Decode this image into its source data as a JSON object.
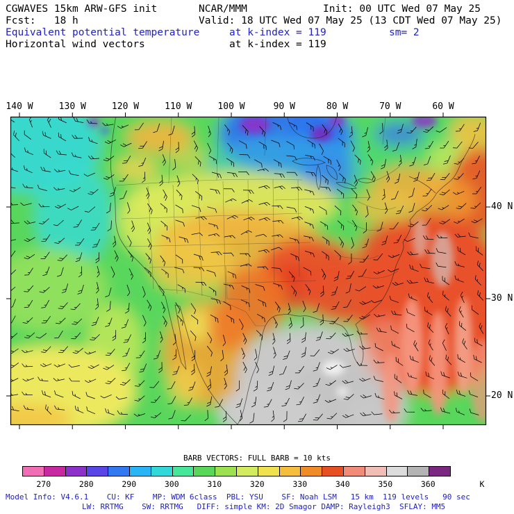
{
  "header": {
    "line1_left": "CGWAVES 15km ARW-GFS init",
    "line1_center": "NCAR/MMM",
    "line1_right": "Init: 00 UTC Wed 07 May 25",
    "line2_left": "Fcst:   18 h",
    "line2_center": "Valid: 18 UTC Wed 07 May 25 (13 CDT Wed 07 May 25)",
    "line3_left": "Equivalent potential temperature",
    "line3_center": "at k-index = 119",
    "line3_right": "sm= 2",
    "line4_left": "Horizontal wind vectors",
    "line4_center": "at k-index = 119"
  },
  "map": {
    "lon_ticks": [
      "140 W",
      "130 W",
      "120 W",
      "110 W",
      "100 W",
      "90 W",
      "80 W",
      "70 W",
      "60 W"
    ],
    "lat_ticks": [
      "40 N",
      "30 N",
      "20 N"
    ]
  },
  "legend": {
    "barb_note": "BARB VECTORS:  FULL BARB  = 10 kts",
    "tick_labels": [
      "270",
      "280",
      "290",
      "300",
      "310",
      "320",
      "330",
      "340",
      "350",
      "360"
    ],
    "unit": "K",
    "cell_colors": [
      "#F06EB4",
      "#C828A0",
      "#8C32C8",
      "#5A46E6",
      "#3278F0",
      "#28B4F5",
      "#32D7D7",
      "#46E69B",
      "#5AD75A",
      "#9BE150",
      "#D2EB5F",
      "#F0E150",
      "#F5BE3C",
      "#F08C28",
      "#E65023",
      "#F08C78",
      "#F0BEB4",
      "#DCDCDC",
      "#B4B4B4",
      "#7A2882"
    ]
  },
  "footer": {
    "line1": "Model Info: V4.6.1    CU: KF    MP: WDM 6class  PBL: YSU    SF: Noah LSM   15 km  119 levels   90 sec",
    "line2": "LW: RRTMG    SW: RRTMG   DIFF: simple KM: 2D Smagor DAMP: Rayleigh3  SFLAY: MM5"
  },
  "colors": {
    "header_accent_blue": "#2020C8",
    "footer_text_blue": "#2020C8",
    "gulf_gray": "#C9C9C9",
    "warm_red": "#E8512A",
    "cold_blue": "#2F74EE"
  },
  "chart_data": {
    "type": "heatmap",
    "title": "Equivalent potential temperature (shaded, K) and horizontal wind vectors at k-index = 119",
    "subtitle": "CGWAVES 15km ARW-GFS init, Fcst 18 h, Valid 18 UTC Wed 07 May 25",
    "x_ticks": [
      "140 W",
      "130 W",
      "120 W",
      "110 W",
      "100 W",
      "90 W",
      "80 W",
      "70 W",
      "60 W"
    ],
    "y_ticks": [
      "40 N",
      "30 N",
      "20 N"
    ],
    "legend_position": "bottom",
    "colorbar": {
      "unit": "K",
      "min": 265,
      "max": 365,
      "interval": 5,
      "tick_labels": [
        "270",
        "280",
        "290",
        "300",
        "310",
        "320",
        "330",
        "340",
        "350",
        "360"
      ],
      "colors": [
        "#F06EB4",
        "#C828A0",
        "#8C32C8",
        "#5A46E6",
        "#3278F0",
        "#28B4F5",
        "#32D7D7",
        "#46E69B",
        "#5AD75A",
        "#9BE150",
        "#D2EB5F",
        "#F0E150",
        "#F5BE3C",
        "#F08C28",
        "#E65023",
        "#F08C78",
        "#F0BEB4",
        "#DCDCDC",
        "#B4B4B4",
        "#7A2882"
      ]
    },
    "wind_barb_scale": "FULL BARB = 10 kts",
    "field_regions": [
      {
        "region": "Gulf of Mexico",
        "theta_e_K": "345-360 (gray shades)"
      },
      {
        "region": "Southeast US and western Atlantic",
        "theta_e_K": "330-345 (red / salmon)"
      },
      {
        "region": "Texas and Mexico interior",
        "theta_e_K": "320-340 (orange / red)"
      },
      {
        "region": "Central Plains and Midwest",
        "theta_e_K": "310-330 (yellow / orange)"
      },
      {
        "region": "Pacific coast and eastern Pacific",
        "theta_e_K": "290-310 (cyan / green)"
      },
      {
        "region": "Central and northern Canada (Hudson Bay)",
        "theta_e_K": "270-290 (blue with purple minima)"
      },
      {
        "region": "Northeast Canada coast / right edge",
        "theta_e_K": "315-340 (yellow to red)"
      }
    ]
  }
}
